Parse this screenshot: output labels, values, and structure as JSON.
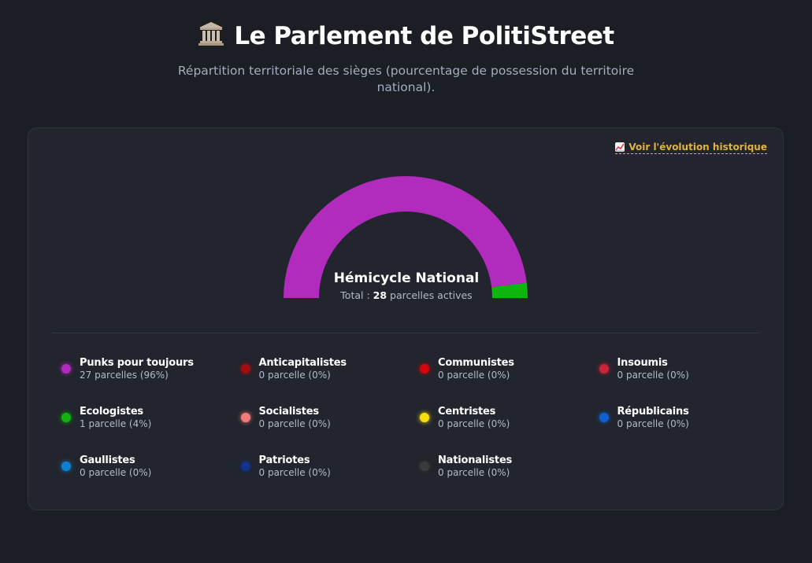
{
  "header": {
    "icon": "classical-building-icon",
    "title": "Le Parlement de PolitiStreet",
    "subtitle": "Répartition territoriale des sièges (pourcentage de possession du territoire national)."
  },
  "history_link": {
    "icon": "chart-increasing-icon",
    "label": "Voir l'évolution historique"
  },
  "hemicycle": {
    "title": "Hémicycle National",
    "total_prefix": "Total : ",
    "total_value": "28",
    "total_suffix": " parcelles actives",
    "segments": [
      {
        "party": "Punks pour toujours",
        "percent": 96,
        "color": "#b12bbd"
      },
      {
        "party": "Ecologistes",
        "percent": 4,
        "color": "#10b40f"
      }
    ]
  },
  "parties": [
    {
      "name": "Punks pour toujours",
      "count": "27 parcelles (96%)",
      "color": "#b12bbd"
    },
    {
      "name": "Anticapitalistes",
      "count": "0 parcelle (0%)",
      "color": "#a10d12"
    },
    {
      "name": "Communistes",
      "count": "0 parcelle (0%)",
      "color": "#d2070b"
    },
    {
      "name": "Insoumis",
      "count": "0 parcelle (0%)",
      "color": "#c8243a"
    },
    {
      "name": "Ecologistes",
      "count": "1 parcelle (4%)",
      "color": "#10b40f"
    },
    {
      "name": "Socialistes",
      "count": "0 parcelle (0%)",
      "color": "#f27c7c"
    },
    {
      "name": "Centristes",
      "count": "0 parcelle (0%)",
      "color": "#f6e007"
    },
    {
      "name": "Républicains",
      "count": "0 parcelle (0%)",
      "color": "#1060cf"
    },
    {
      "name": "Gaullistes",
      "count": "0 parcelle (0%)",
      "color": "#0f7fcf"
    },
    {
      "name": "Patriotes",
      "count": "0 parcelle (0%)",
      "color": "#13338f"
    },
    {
      "name": "Nationalistes",
      "count": "0 parcelle (0%)",
      "color": "#3b3b3b"
    }
  ]
}
